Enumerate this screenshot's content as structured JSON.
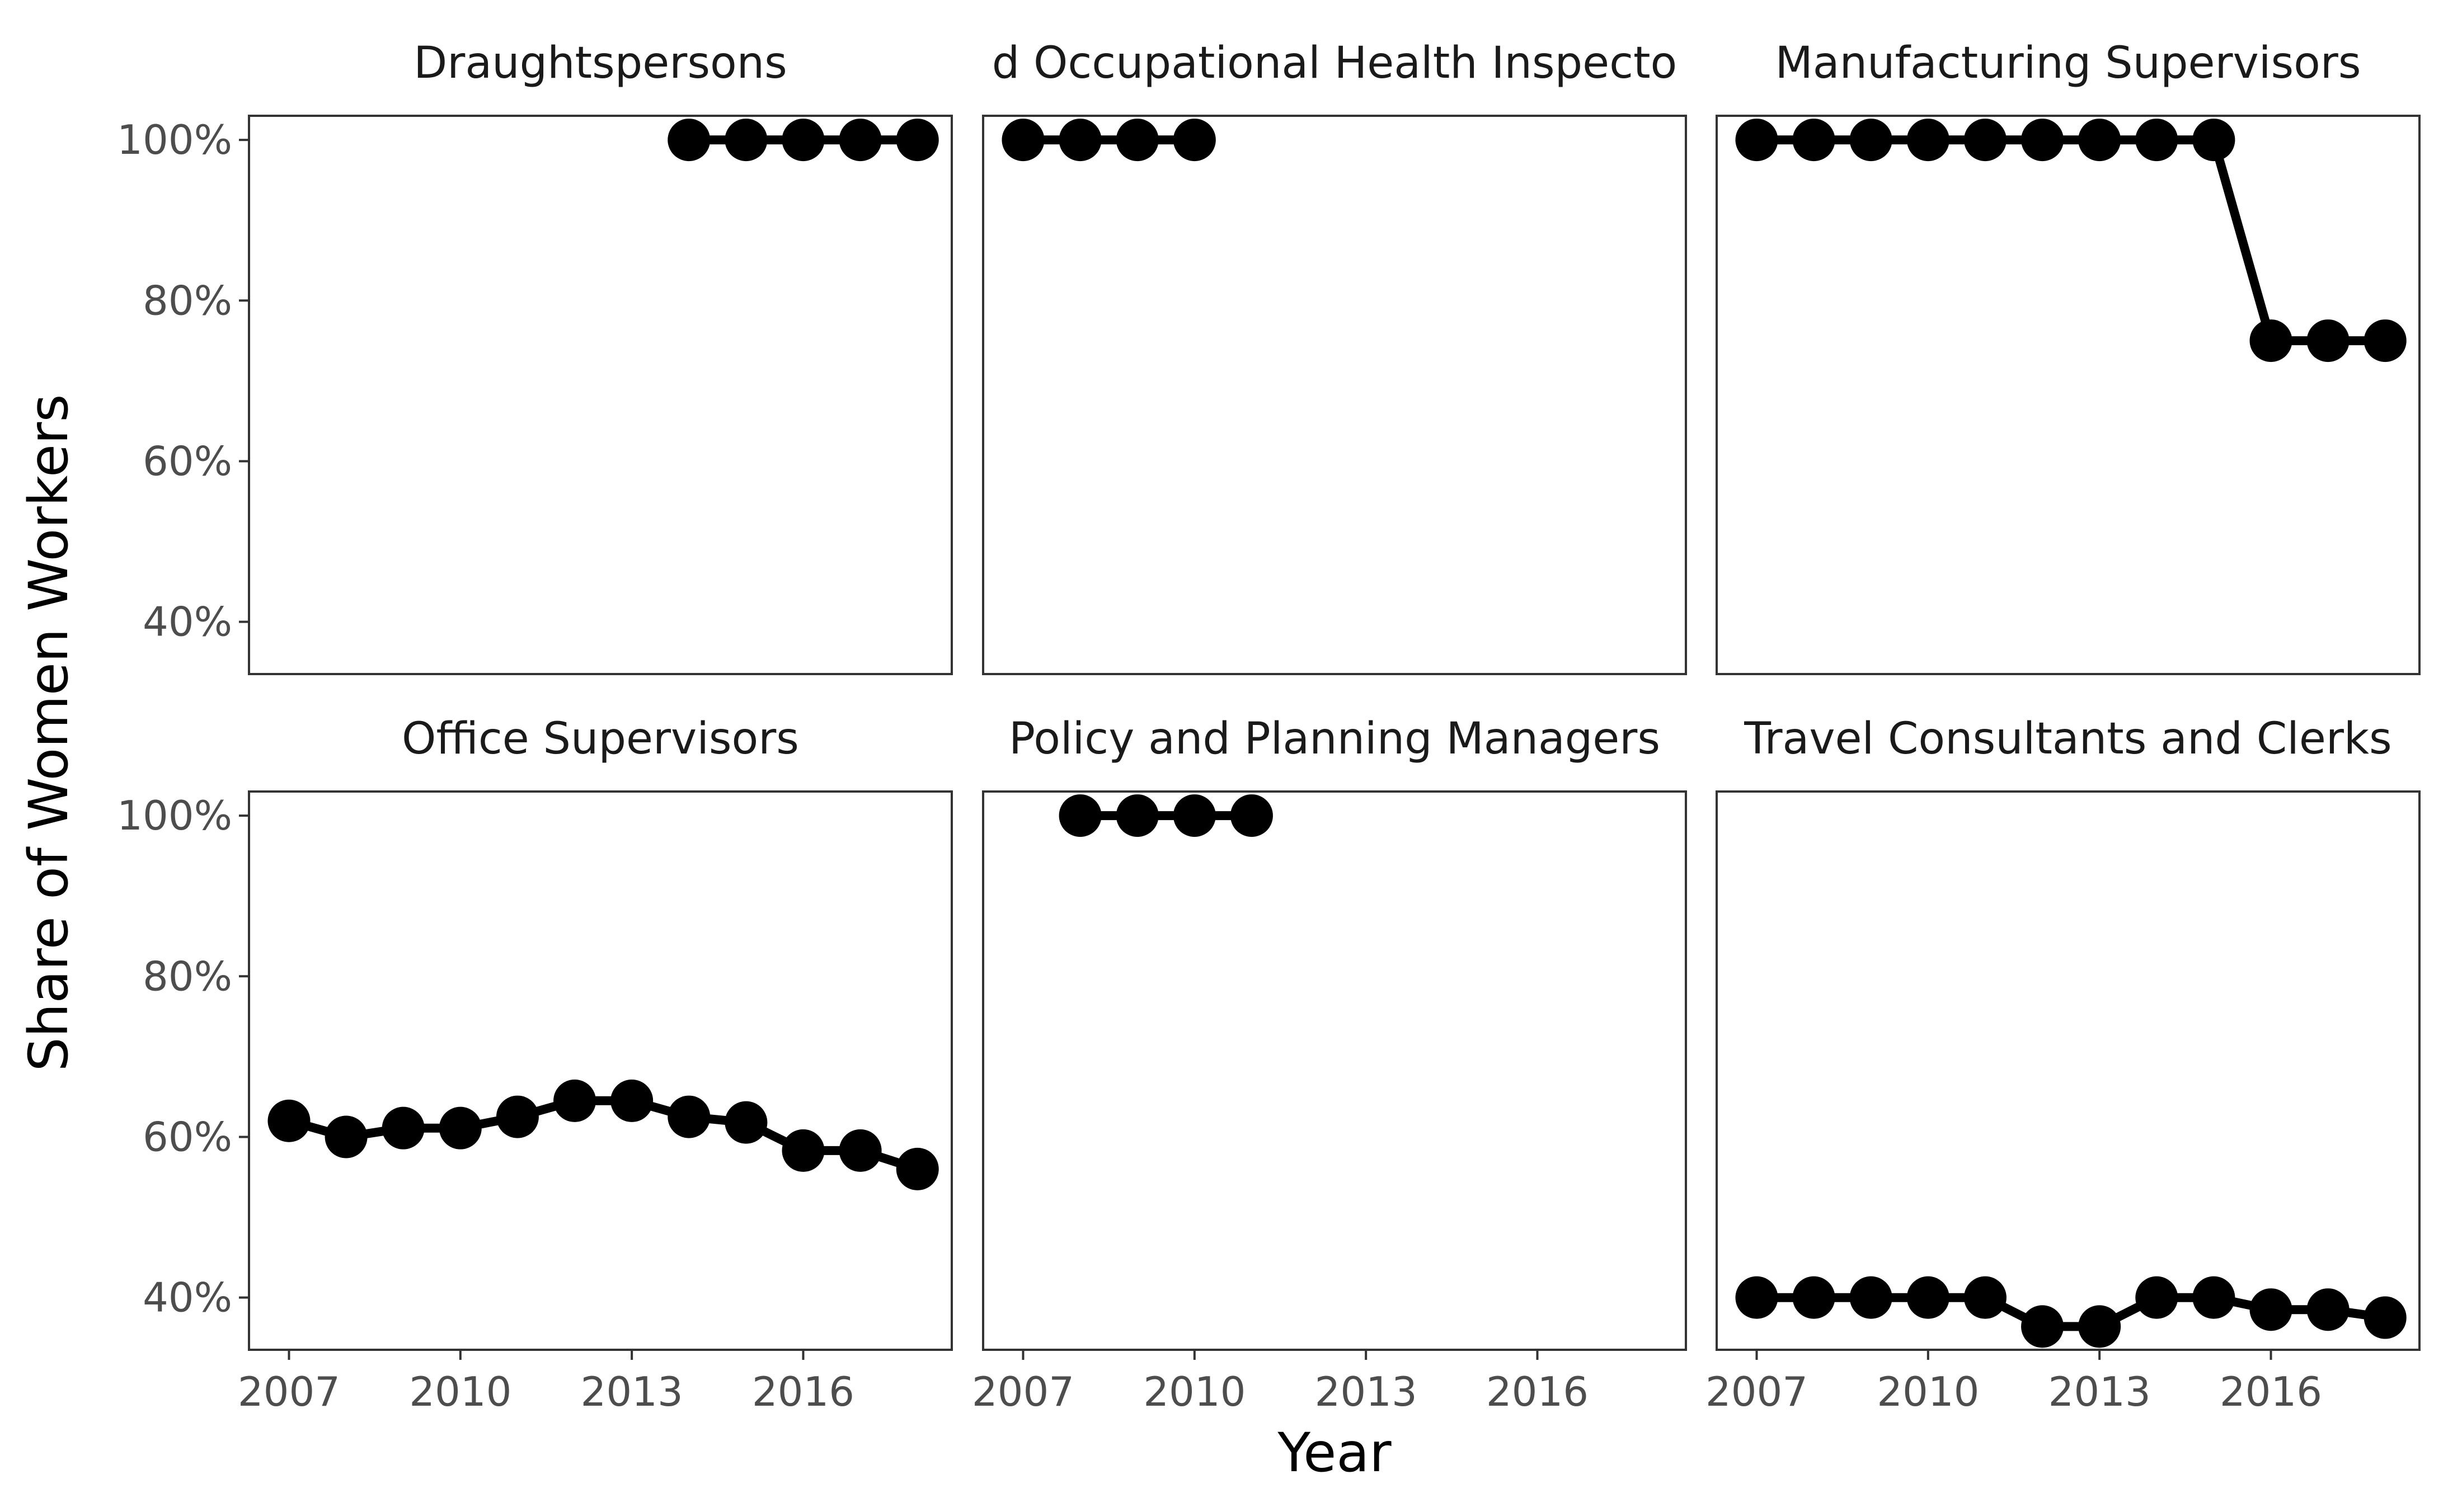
{
  "chart_data": {
    "type": "line",
    "xlabel": "Year",
    "ylabel": "Share of Women Workers",
    "xlim": [
      2006.3,
      2018.6
    ],
    "ylim": [
      33.5,
      103
    ],
    "x_ticks": [
      2007,
      2010,
      2013,
      2016
    ],
    "y_ticks": [
      40,
      60,
      80,
      100
    ],
    "y_tick_labels": [
      "40%",
      "60%",
      "80%",
      "100%"
    ],
    "grid": false,
    "legend": "none",
    "color": "#000000",
    "panels": [
      {
        "title": "Draughtspersons",
        "x": [
          2014,
          2015,
          2016,
          2017,
          2018
        ],
        "values": [
          100,
          100,
          100,
          100,
          100
        ]
      },
      {
        "title": "d Occupational Health Inspecto",
        "x": [
          2007,
          2008,
          2009,
          2010
        ],
        "values": [
          100,
          100,
          100,
          100
        ]
      },
      {
        "title": "Manufacturing Supervisors",
        "x": [
          2007,
          2008,
          2009,
          2010,
          2011,
          2012,
          2013,
          2014,
          2015,
          2016,
          2017,
          2018
        ],
        "values": [
          100,
          100,
          100,
          100,
          100,
          100,
          100,
          100,
          100,
          75,
          75,
          75
        ]
      },
      {
        "title": "Office Supervisors",
        "x": [
          2007,
          2008,
          2009,
          2010,
          2011,
          2012,
          2013,
          2014,
          2015,
          2016,
          2017,
          2018
        ],
        "values": [
          62,
          60,
          61.1,
          61.1,
          62.5,
          64.5,
          64.5,
          62.5,
          61.8,
          58.3,
          58.3,
          56
        ]
      },
      {
        "title": "Policy and Planning Managers",
        "x": [
          2008,
          2009,
          2010,
          2011
        ],
        "values": [
          100,
          100,
          100,
          100
        ]
      },
      {
        "title": "Travel Consultants and Clerks",
        "x": [
          2007,
          2008,
          2009,
          2010,
          2011,
          2012,
          2013,
          2014,
          2015,
          2016,
          2017,
          2018
        ],
        "values": [
          40,
          40,
          40,
          40,
          40,
          36.4,
          36.4,
          40,
          40,
          38.5,
          38.5,
          37.5
        ]
      }
    ]
  }
}
